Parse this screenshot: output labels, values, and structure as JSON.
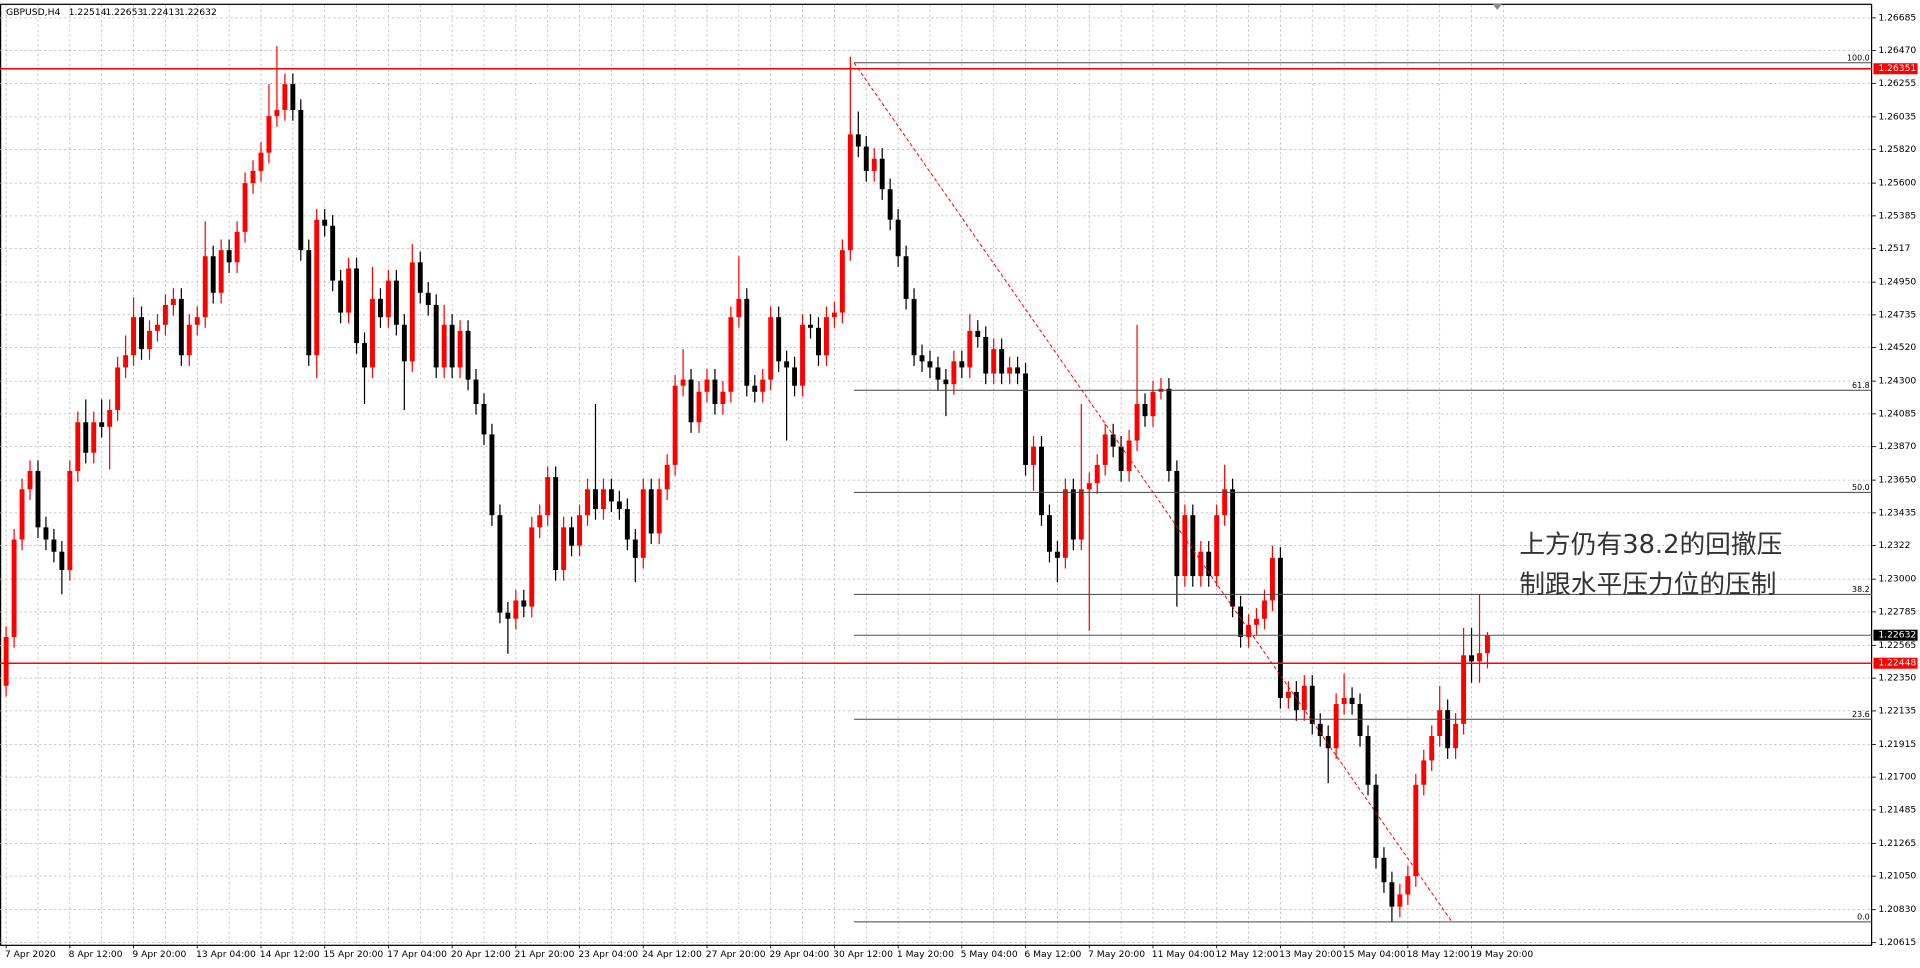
{
  "chart_data": {
    "type": "candlestick",
    "title": "GBPUSD,H4",
    "up_color": "#ff0000",
    "down_color": "#000000",
    "grid": true,
    "ylim": [
      1.206,
      1.2677
    ],
    "yticks": [
      1.26685,
      {
        "value": 1.2647,
        "label": "1.26470"
      },
      1.26255,
      {
        "value": 1.26035,
        "label": "1.26035"
      },
      {
        "value": 1.2582,
        "label": "1.25820"
      },
      {
        "value": 1.256,
        "label": "1.25600"
      },
      1.25385,
      1.2517,
      {
        "value": 1.2495,
        "label": "1.24950"
      },
      1.24735,
      {
        "value": 1.2452,
        "label": "1.24520"
      },
      {
        "value": 1.243,
        "label": "1.24300"
      },
      1.24085,
      {
        "value": 1.2387,
        "label": "1.23870"
      },
      {
        "value": 1.2365,
        "label": "1.23650"
      },
      1.23435,
      1.2322,
      {
        "value": 1.23,
        "label": "1.23000"
      },
      1.22785,
      1.22565,
      {
        "value": 1.2235,
        "label": "1.22350"
      },
      1.22135,
      1.21915,
      {
        "value": 1.217,
        "label": "1.21700"
      },
      1.21485,
      1.21265,
      {
        "value": 1.2105,
        "label": "1.21050"
      },
      {
        "value": 1.2083,
        "label": "1.20830"
      },
      1.20615
    ],
    "hlines": [
      1.26351,
      1.22448
    ],
    "hline_color": "#ff0000",
    "last_price": 1.22632,
    "fibonacci": [
      {
        "label": "100.0",
        "price": 1.2639
      },
      {
        "label": "61.8",
        "price": 1.2424
      },
      {
        "label": "50.0",
        "price": 1.2357
      },
      {
        "label": "38.2",
        "price": 1.229
      },
      {
        "label": "23.6",
        "price": 1.2208
      },
      {
        "label": "0.0",
        "price": 1.2075
      }
    ],
    "annotation": [
      "上方仍有38.2的回撤压",
      "制跟水平压力位的压制"
    ],
    "categories": [
      "7 Apr 2020",
      null,
      null,
      null,
      null,
      null,
      null,
      null,
      "8 Apr 12:00",
      null,
      null,
      null,
      null,
      null,
      null,
      null,
      "9 Apr 20:00",
      null,
      null,
      null,
      null,
      null,
      null,
      null,
      "13 Apr 04:00",
      null,
      null,
      null,
      null,
      null,
      null,
      null,
      "14 Apr 12:00",
      null,
      null,
      null,
      null,
      null,
      null,
      null,
      "15 Apr 20:00",
      null,
      null,
      null,
      null,
      null,
      null,
      null,
      "17 Apr 04:00",
      null,
      null,
      null,
      null,
      null,
      null,
      null,
      "20 Apr 12:00",
      null,
      null,
      null,
      null,
      null,
      null,
      null,
      "21 Apr 20:00",
      null,
      null,
      null,
      null,
      null,
      null,
      null,
      "23 Apr 04:00",
      null,
      null,
      null,
      null,
      null,
      null,
      null,
      "24 Apr 12:00",
      null,
      null,
      null,
      null,
      null,
      null,
      null,
      "27 Apr 20:00",
      null,
      null,
      null,
      null,
      null,
      null,
      null,
      "29 Apr 04:00",
      null,
      null,
      null,
      null,
      null,
      null,
      null,
      "30 Apr 12:00",
      null,
      null,
      null,
      null,
      null,
      null,
      null,
      "1 May 20:00",
      null,
      null,
      null,
      null,
      null,
      null,
      null,
      "5 May 04:00",
      null,
      null,
      null,
      null,
      null,
      null,
      null,
      "6 May 12:00",
      null,
      null,
      null,
      null,
      null,
      null,
      null,
      "7 May 20:00",
      null,
      null,
      null,
      null,
      null,
      null,
      null,
      "11 May 04:00",
      null,
      null,
      null,
      null,
      null,
      null,
      null,
      "12 May 12:00",
      null,
      null,
      null,
      null,
      null,
      null,
      null,
      "13 May 20:00",
      null,
      null,
      null,
      null,
      null,
      null,
      null,
      "15 May 04:00",
      null,
      null,
      null,
      null,
      null,
      null,
      null,
      "18 May 12:00",
      null,
      null,
      null,
      null,
      null,
      null,
      null,
      "19 May 20:00",
      null,
      null
    ],
    "ohlc": [
      [
        1.223,
        1.2269,
        1.2223,
        1.2262
      ],
      [
        1.2262,
        1.2333,
        1.2255,
        1.2326
      ],
      [
        1.2326,
        1.2366,
        1.2319,
        1.2359
      ],
      [
        1.2359,
        1.2378,
        1.2352,
        1.2371
      ],
      [
        1.2371,
        1.2378,
        1.2327,
        1.2334
      ],
      [
        1.2334,
        1.2341,
        1.2319,
        1.2326
      ],
      [
        1.2326,
        1.2333,
        1.2311,
        1.2318
      ],
      [
        1.2318,
        1.2325,
        1.229,
        1.2306
      ],
      [
        1.2306,
        1.2378,
        1.2299,
        1.2371
      ],
      [
        1.2371,
        1.241,
        1.2364,
        1.2403
      ],
      [
        1.2403,
        1.2418,
        1.2376,
        1.2383
      ],
      [
        1.2383,
        1.241,
        1.2376,
        1.2403
      ],
      [
        1.2403,
        1.2418,
        1.2393,
        1.24
      ],
      [
        1.24,
        1.2418,
        1.2372,
        1.2411
      ],
      [
        1.2411,
        1.2446,
        1.2404,
        1.2439
      ],
      [
        1.2439,
        1.246,
        1.2432,
        1.2447
      ],
      [
        1.2447,
        1.2485,
        1.244,
        1.2472
      ],
      [
        1.2472,
        1.2479,
        1.2444,
        1.2451
      ],
      [
        1.2451,
        1.247,
        1.2444,
        1.2463
      ],
      [
        1.2463,
        1.2474,
        1.2456,
        1.2467
      ],
      [
        1.2467,
        1.2487,
        1.246,
        1.248
      ],
      [
        1.248,
        1.2491,
        1.2473,
        1.2484
      ],
      [
        1.2484,
        1.2491,
        1.244,
        1.2447
      ],
      [
        1.2447,
        1.2474,
        1.244,
        1.2467
      ],
      [
        1.2467,
        1.2479,
        1.246,
        1.2472
      ],
      [
        1.2472,
        1.2535,
        1.2465,
        1.2512
      ],
      [
        1.2512,
        1.2519,
        1.2481,
        1.2488
      ],
      [
        1.2488,
        1.2523,
        1.2481,
        1.2516
      ],
      [
        1.2516,
        1.2523,
        1.2501,
        1.2508
      ],
      [
        1.2508,
        1.2535,
        1.2501,
        1.2528
      ],
      [
        1.2528,
        1.2567,
        1.2521,
        1.256
      ],
      [
        1.256,
        1.2575,
        1.2553,
        1.2568
      ],
      [
        1.2568,
        1.2587,
        1.2561,
        1.258
      ],
      [
        1.258,
        1.2625,
        1.2573,
        1.2604
      ],
      [
        1.2604,
        1.265,
        1.2597,
        1.2608
      ],
      [
        1.2608,
        1.2632,
        1.2601,
        1.2625
      ],
      [
        1.2625,
        1.2632,
        1.2601,
        1.2608
      ],
      [
        1.2608,
        1.2615,
        1.2509,
        1.2516
      ],
      [
        1.2516,
        1.2523,
        1.244,
        1.2447
      ],
      [
        1.2447,
        1.2543,
        1.2432,
        1.2536
      ],
      [
        1.2536,
        1.2543,
        1.2525,
        1.2532
      ],
      [
        1.2532,
        1.2539,
        1.2489,
        1.2496
      ],
      [
        1.2496,
        1.2503,
        1.2468,
        1.2475
      ],
      [
        1.2475,
        1.2511,
        1.2468,
        1.2504
      ],
      [
        1.2504,
        1.2511,
        1.2448,
        1.2455
      ],
      [
        1.2455,
        1.2462,
        1.2415,
        1.2439
      ],
      [
        1.2439,
        1.2505,
        1.2432,
        1.2484
      ],
      [
        1.2484,
        1.2491,
        1.2465,
        1.2472
      ],
      [
        1.2472,
        1.2503,
        1.2465,
        1.2496
      ],
      [
        1.2496,
        1.2503,
        1.246,
        1.2467
      ],
      [
        1.2467,
        1.2474,
        1.2411,
        1.2443
      ],
      [
        1.2443,
        1.252,
        1.2436,
        1.2508
      ],
      [
        1.2508,
        1.2515,
        1.2481,
        1.2488
      ],
      [
        1.2488,
        1.2495,
        1.2473,
        1.248
      ],
      [
        1.248,
        1.2487,
        1.2432,
        1.2439
      ],
      [
        1.2439,
        1.248,
        1.2432,
        1.2467
      ],
      [
        1.2467,
        1.2474,
        1.2432,
        1.2439
      ],
      [
        1.2439,
        1.247,
        1.2432,
        1.2463
      ],
      [
        1.2463,
        1.247,
        1.2424,
        1.2431
      ],
      [
        1.2431,
        1.2438,
        1.2408,
        1.2415
      ],
      [
        1.2415,
        1.2422,
        1.2388,
        1.2395
      ],
      [
        1.2395,
        1.2402,
        1.2335,
        1.2342
      ],
      [
        1.2342,
        1.2349,
        1.2271,
        1.2278
      ],
      [
        1.2278,
        1.2285,
        1.2251,
        1.2274
      ],
      [
        1.2274,
        1.2293,
        1.2267,
        1.2286
      ],
      [
        1.2286,
        1.2293,
        1.2275,
        1.2282
      ],
      [
        1.2282,
        1.2341,
        1.2275,
        1.2334
      ],
      [
        1.2334,
        1.2349,
        1.2327,
        1.2342
      ],
      [
        1.2342,
        1.2374,
        1.2335,
        1.2367
      ],
      [
        1.2367,
        1.2374,
        1.2299,
        1.2306
      ],
      [
        1.2306,
        1.2341,
        1.2299,
        1.2334
      ],
      [
        1.2334,
        1.2341,
        1.2315,
        1.2322
      ],
      [
        1.2322,
        1.2349,
        1.2315,
        1.2342
      ],
      [
        1.2342,
        1.2366,
        1.2335,
        1.2359
      ],
      [
        1.2359,
        1.2415,
        1.2339,
        1.2346
      ],
      [
        1.2346,
        1.2366,
        1.2339,
        1.2359
      ],
      [
        1.2359,
        1.2366,
        1.2344,
        1.2351
      ],
      [
        1.2351,
        1.2358,
        1.2339,
        1.2346
      ],
      [
        1.2346,
        1.2353,
        1.2319,
        1.2326
      ],
      [
        1.2326,
        1.2333,
        1.2298,
        1.2314
      ],
      [
        1.2314,
        1.2366,
        1.2307,
        1.2359
      ],
      [
        1.2359,
        1.2366,
        1.2323,
        1.233
      ],
      [
        1.233,
        1.2366,
        1.2323,
        1.2359
      ],
      [
        1.2359,
        1.2382,
        1.2352,
        1.2375
      ],
      [
        1.2375,
        1.2434,
        1.2368,
        1.2427
      ],
      [
        1.2427,
        1.2451,
        1.242,
        1.2431
      ],
      [
        1.2431,
        1.2438,
        1.2396,
        1.2403
      ],
      [
        1.2403,
        1.243,
        1.2396,
        1.2423
      ],
      [
        1.2423,
        1.2438,
        1.2416,
        1.2431
      ],
      [
        1.2431,
        1.2438,
        1.2408,
        1.2415
      ],
      [
        1.2415,
        1.243,
        1.2408,
        1.2423
      ],
      [
        1.2423,
        1.2479,
        1.2416,
        1.2472
      ],
      [
        1.2472,
        1.2512,
        1.2465,
        1.2484
      ],
      [
        1.2484,
        1.2491,
        1.242,
        1.2427
      ],
      [
        1.2427,
        1.2434,
        1.2416,
        1.2423
      ],
      [
        1.2423,
        1.2438,
        1.2416,
        1.2431
      ],
      [
        1.2431,
        1.2479,
        1.2424,
        1.2472
      ],
      [
        1.2472,
        1.2479,
        1.2436,
        1.2443
      ],
      [
        1.2443,
        1.245,
        1.2391,
        1.2439
      ],
      [
        1.2439,
        1.2446,
        1.242,
        1.2427
      ],
      [
        1.2427,
        1.2474,
        1.242,
        1.2467
      ],
      [
        1.2467,
        1.2474,
        1.2458,
        1.2465
      ],
      [
        1.2465,
        1.2472,
        1.244,
        1.2447
      ],
      [
        1.2447,
        1.2479,
        1.244,
        1.2472
      ],
      [
        1.2472,
        1.2482,
        1.2465,
        1.2475
      ],
      [
        1.2475,
        1.2523,
        1.2468,
        1.2516
      ],
      [
        1.2516,
        1.2643,
        1.2509,
        1.2592
      ],
      [
        1.2592,
        1.2607,
        1.2577,
        1.2584
      ],
      [
        1.2584,
        1.2591,
        1.2561,
        1.2568
      ],
      [
        1.2568,
        1.2583,
        1.2561,
        1.2576
      ],
      [
        1.2576,
        1.2583,
        1.2549,
        1.2556
      ],
      [
        1.2556,
        1.2563,
        1.2529,
        1.2536
      ],
      [
        1.2536,
        1.2543,
        1.2505,
        1.2512
      ],
      [
        1.2512,
        1.2519,
        1.2477,
        1.2484
      ],
      [
        1.2484,
        1.2491,
        1.244,
        1.2447
      ],
      [
        1.2447,
        1.2454,
        1.2436,
        1.2443
      ],
      [
        1.2443,
        1.245,
        1.2432,
        1.2439
      ],
      [
        1.2439,
        1.2446,
        1.2424,
        1.2431
      ],
      [
        1.2431,
        1.2438,
        1.2407,
        1.2428
      ],
      [
        1.2428,
        1.245,
        1.2421,
        1.2443
      ],
      [
        1.2443,
        1.245,
        1.2432,
        1.2439
      ],
      [
        1.2439,
        1.2474,
        1.2432,
        1.2463
      ],
      [
        1.2463,
        1.247,
        1.2452,
        1.2459
      ],
      [
        1.2459,
        1.2466,
        1.2428,
        1.2435
      ],
      [
        1.2435,
        1.2458,
        1.2428,
        1.2451
      ],
      [
        1.2451,
        1.2458,
        1.2428,
        1.2435
      ],
      [
        1.2435,
        1.2446,
        1.2428,
        1.2439
      ],
      [
        1.2439,
        1.2446,
        1.2428,
        1.2435
      ],
      [
        1.2435,
        1.2442,
        1.2368,
        1.2375
      ],
      [
        1.2375,
        1.2394,
        1.2358,
        1.2387
      ],
      [
        1.2387,
        1.2394,
        1.2335,
        1.2342
      ],
      [
        1.2342,
        1.2349,
        1.2311,
        1.2318
      ],
      [
        1.2318,
        1.2325,
        1.2298,
        1.2314
      ],
      [
        1.2314,
        1.2366,
        1.2307,
        1.2359
      ],
      [
        1.2359,
        1.2366,
        1.2319,
        1.2326
      ],
      [
        1.2326,
        1.2415,
        1.2319,
        1.2359
      ],
      [
        1.2359,
        1.237,
        1.2266,
        1.2363
      ],
      [
        1.2363,
        1.2382,
        1.2356,
        1.2375
      ],
      [
        1.2375,
        1.2402,
        1.2368,
        1.2395
      ],
      [
        1.2395,
        1.2402,
        1.238,
        1.2387
      ],
      [
        1.2387,
        1.2394,
        1.2364,
        1.2371
      ],
      [
        1.2371,
        1.2398,
        1.2364,
        1.2391
      ],
      [
        1.2391,
        1.2467,
        1.2384,
        1.2415
      ],
      [
        1.2415,
        1.2422,
        1.24,
        1.2407
      ],
      [
        1.2407,
        1.243,
        1.24,
        1.2423
      ],
      [
        1.2423,
        1.2432,
        1.2418,
        1.2425
      ],
      [
        1.2425,
        1.2432,
        1.2364,
        1.2371
      ],
      [
        1.2371,
        1.2378,
        1.2282,
        1.2302
      ],
      [
        1.2302,
        1.2349,
        1.2295,
        1.2342
      ],
      [
        1.2342,
        1.2349,
        1.2295,
        1.2302
      ],
      [
        1.2302,
        1.2325,
        1.2295,
        1.2318
      ],
      [
        1.2318,
        1.2325,
        1.2295,
        1.2302
      ],
      [
        1.2302,
        1.2349,
        1.2295,
        1.2342
      ],
      [
        1.2342,
        1.2375,
        1.2335,
        1.2359
      ],
      [
        1.2359,
        1.2366,
        1.2275,
        1.2282
      ],
      [
        1.2282,
        1.2289,
        1.2255,
        1.2262
      ],
      [
        1.2262,
        1.2277,
        1.2255,
        1.227
      ],
      [
        1.227,
        1.2281,
        1.2263,
        1.2274
      ],
      [
        1.2274,
        1.2293,
        1.2267,
        1.2286
      ],
      [
        1.2286,
        1.2322,
        1.2279,
        1.2314
      ],
      [
        1.2314,
        1.2321,
        1.2215,
        1.2222
      ],
      [
        1.2222,
        1.2233,
        1.2215,
        1.2226
      ],
      [
        1.2226,
        1.2233,
        1.2207,
        1.2214
      ],
      [
        1.2214,
        1.2237,
        1.2207,
        1.223
      ],
      [
        1.223,
        1.2237,
        1.2198,
        1.2205
      ],
      [
        1.2205,
        1.2212,
        1.219,
        1.2197
      ],
      [
        1.2197,
        1.2204,
        1.2166,
        1.2189
      ],
      [
        1.2189,
        1.2225,
        1.2182,
        1.2218
      ],
      [
        1.2218,
        1.2238,
        1.2211,
        1.2222
      ],
      [
        1.2222,
        1.2229,
        1.2211,
        1.2218
      ],
      [
        1.2218,
        1.2225,
        1.219,
        1.2197
      ],
      [
        1.2197,
        1.2204,
        1.2158,
        1.2165
      ],
      [
        1.2165,
        1.2172,
        1.211,
        1.2117
      ],
      [
        1.2117,
        1.2124,
        1.2094,
        1.2101
      ],
      [
        1.2101,
        1.2108,
        1.2075,
        1.2085
      ],
      [
        1.2085,
        1.21,
        1.2078,
        1.2093
      ],
      [
        1.2093,
        1.2112,
        1.2086,
        1.2105
      ],
      [
        1.2105,
        1.2172,
        1.2098,
        1.2165
      ],
      [
        1.2165,
        1.2188,
        1.2158,
        1.2181
      ],
      [
        1.2181,
        1.2204,
        1.2174,
        1.2197
      ],
      [
        1.2197,
        1.223,
        1.219,
        1.2214
      ],
      [
        1.2214,
        1.2221,
        1.2182,
        1.2189
      ],
      [
        1.2189,
        1.2212,
        1.2182,
        1.2205
      ],
      [
        1.2205,
        1.2268,
        1.2198,
        1.225
      ],
      [
        1.225,
        1.2268,
        1.2232,
        1.2246
      ],
      [
        1.2246,
        1.229,
        1.2232,
        1.22514
      ],
      [
        1.22514,
        1.22653,
        1.22413,
        1.22632
      ]
    ]
  }
}
